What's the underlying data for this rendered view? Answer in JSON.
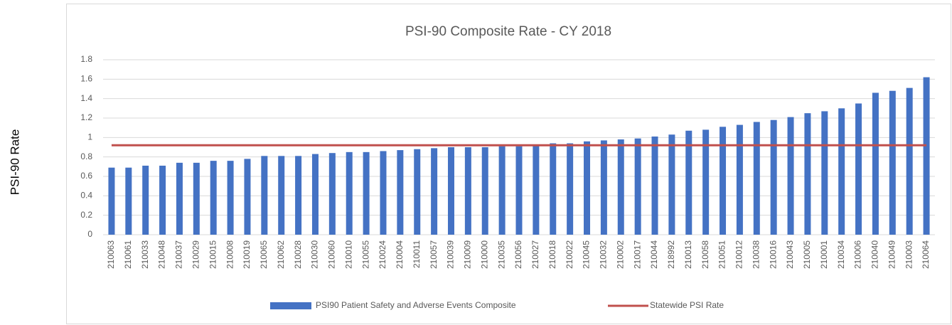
{
  "y_axis_title": "PSI-90 Rate",
  "chart_data": {
    "type": "bar",
    "title": "PSI-90 Composite Rate - CY 2018",
    "categories": [
      "210063",
      "210061",
      "210033",
      "210048",
      "210037",
      "210029",
      "210015",
      "210008",
      "210019",
      "210065",
      "210062",
      "210028",
      "210030",
      "210060",
      "210010",
      "210055",
      "210024",
      "210004",
      "210011",
      "210057",
      "210039",
      "210009",
      "210000",
      "210035",
      "210056",
      "210027",
      "210018",
      "210022",
      "210045",
      "210032",
      "210002",
      "210017",
      "210044",
      "218992",
      "210013",
      "210058",
      "210051",
      "210012",
      "210038",
      "210016",
      "210043",
      "210005",
      "210001",
      "210034",
      "210006",
      "210040",
      "210049",
      "210003",
      "210064"
    ],
    "series": [
      {
        "name": "PSI90 Patient Safety and Adverse Events Composite",
        "color": "#4472c4",
        "values": [
          0.69,
          0.69,
          0.71,
          0.71,
          0.74,
          0.74,
          0.76,
          0.76,
          0.78,
          0.81,
          0.81,
          0.81,
          0.83,
          0.84,
          0.85,
          0.85,
          0.86,
          0.87,
          0.88,
          0.89,
          0.9,
          0.9,
          0.9,
          0.91,
          0.91,
          0.92,
          0.94,
          0.94,
          0.96,
          0.97,
          0.98,
          0.99,
          1.01,
          1.03,
          1.07,
          1.08,
          1.11,
          1.13,
          1.16,
          1.18,
          1.21,
          1.25,
          1.27,
          1.3,
          1.35,
          1.46,
          1.48,
          1.51,
          1.62
        ]
      }
    ],
    "reference_line": {
      "name": "Statewide PSI Rate",
      "color": "#c0504d",
      "value": 0.92
    },
    "ylim": [
      0,
      1.8
    ],
    "yticks": [
      0,
      0.2,
      0.4,
      0.6,
      0.8,
      1,
      1.2,
      1.4,
      1.6,
      1.8
    ],
    "grid": true,
    "legend": "bottom"
  }
}
